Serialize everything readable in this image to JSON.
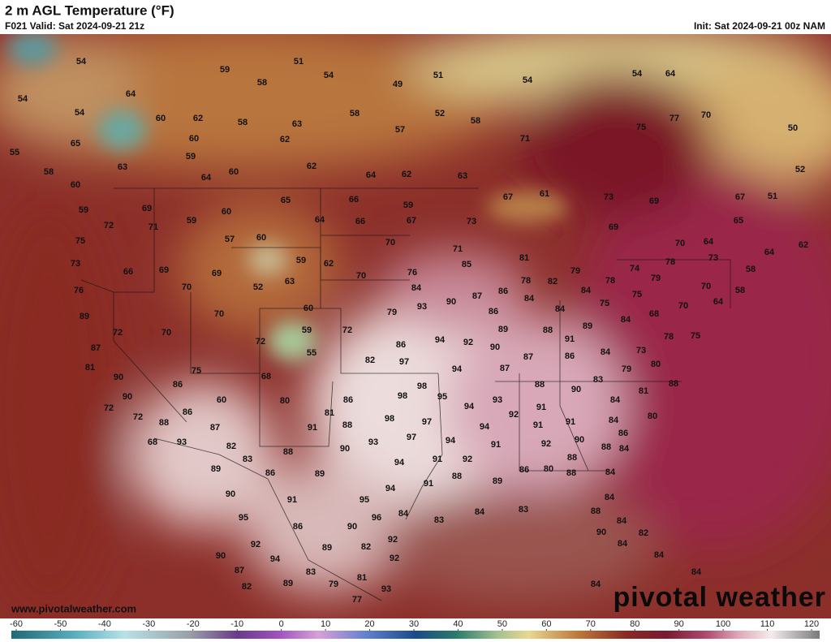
{
  "header": {
    "title": "2 m AGL Temperature (°F)",
    "valid": "F021 Valid: Sat 2024-09-21 21z",
    "init": "Init: Sat 2024-09-21 00z NAM"
  },
  "watermark": {
    "url": "www.pivotalweather.com",
    "brand": "pivotal weather"
  },
  "colorbar": {
    "ticks": [
      -60,
      -50,
      -40,
      -30,
      -20,
      -10,
      0,
      10,
      20,
      30,
      40,
      50,
      60,
      70,
      80,
      90,
      100,
      110,
      120
    ]
  },
  "map": {
    "labels": [
      54,
      51,
      59,
      58,
      54,
      49,
      51,
      54,
      54,
      64,
      64,
      54,
      54,
      60,
      62,
      58,
      63,
      58,
      52,
      57,
      58,
      75,
      77,
      70,
      50,
      71,
      65,
      60,
      62,
      59,
      55,
      63,
      64,
      60,
      62,
      64,
      62,
      63,
      52,
      58,
      60,
      65,
      66,
      59,
      67,
      61,
      73,
      69,
      67,
      51,
      69,
      59,
      60,
      59,
      72,
      71,
      64,
      66,
      67,
      73,
      69,
      65,
      75,
      57,
      60,
      70,
      70,
      64,
      71,
      81,
      78,
      64,
      62,
      73,
      66,
      69,
      69,
      59,
      62,
      70,
      76,
      85,
      79,
      74,
      79,
      73,
      58,
      76,
      70,
      52,
      63,
      84,
      86,
      87,
      78,
      82,
      84,
      78,
      70,
      58,
      90,
      84,
      75,
      75,
      64,
      70,
      60,
      89,
      70,
      79,
      93,
      86,
      84,
      68,
      84,
      72,
      70,
      59,
      72,
      89,
      88,
      89,
      87,
      72,
      55,
      86,
      94,
      92,
      90,
      91,
      78,
      73,
      75,
      81,
      82,
      97,
      87,
      86,
      84,
      80,
      90,
      75,
      68,
      94,
      87,
      79,
      83,
      86,
      98,
      88,
      90,
      81,
      88,
      90,
      60,
      80,
      86,
      98,
      95,
      84,
      72,
      86,
      81,
      94,
      93,
      91,
      72,
      88,
      98,
      97,
      92,
      91,
      91,
      84,
      80,
      87,
      91,
      88,
      94,
      86,
      68,
      93,
      82,
      97,
      93,
      94,
      91,
      92,
      90,
      88,
      84,
      88,
      90,
      83,
      94,
      91,
      92,
      86,
      88,
      88,
      89,
      86,
      89,
      88,
      89,
      84,
      80,
      94,
      91,
      90,
      84,
      95,
      91,
      95,
      84,
      83,
      84,
      83,
      88,
      84,
      96,
      86,
      90,
      92,
      90,
      82,
      84,
      92,
      89,
      82,
      92,
      94,
      84,
      90,
      87,
      83,
      81,
      84,
      82,
      89,
      79,
      93,
      77,
      84
    ]
  }
}
